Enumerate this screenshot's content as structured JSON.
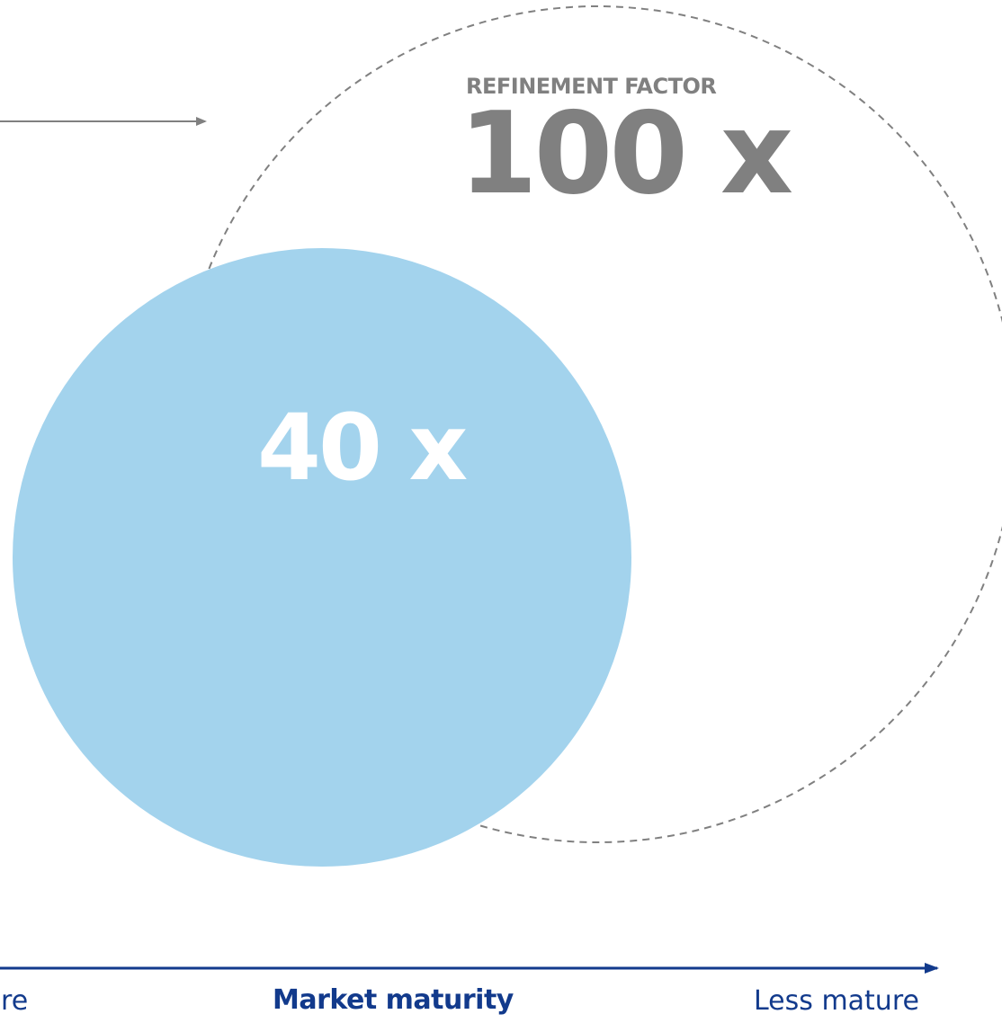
{
  "diagram": {
    "refinement_label": "REFINEMENT FACTOR",
    "large_factor": "100 x",
    "small_factor": "40 x",
    "axis": {
      "left_label": "ure",
      "title": "Market maturity",
      "right_label": "Less mature"
    }
  },
  "colors": {
    "filled_circle": "#a3d3ed",
    "dashed_circle": "#808080",
    "top_arrow": "#808080",
    "axis": "#123a8c",
    "factor_text": "#808080",
    "inner_text": "#ffffff"
  }
}
